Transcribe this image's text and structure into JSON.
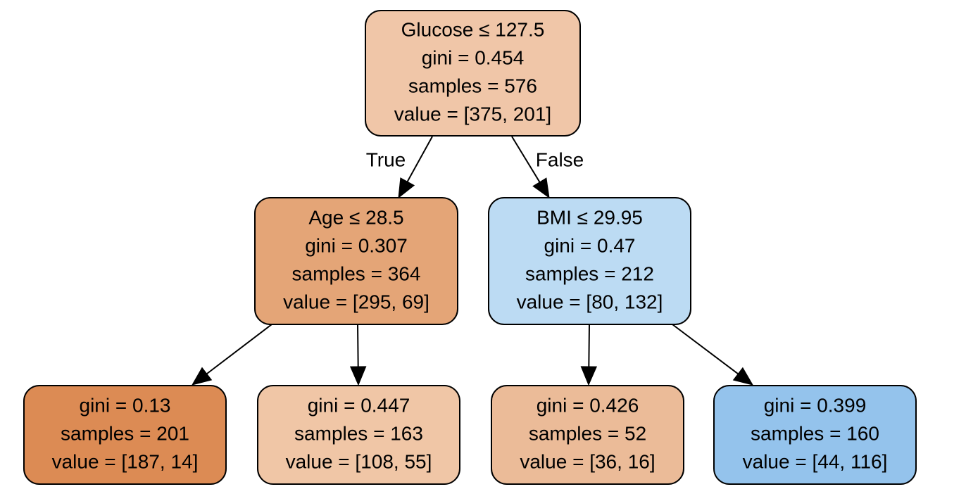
{
  "tree": {
    "nodes": [
      {
        "id": "root",
        "fill": "#f0c6a8",
        "lines": [
          "Glucose ≤ 127.5",
          "gini = 0.454",
          "samples = 576",
          "value = [375, 201]"
        ]
      },
      {
        "id": "left",
        "fill": "#e4a577",
        "lines": [
          "Age ≤ 28.5",
          "gini = 0.307",
          "samples = 364",
          "value = [295, 69]"
        ]
      },
      {
        "id": "right",
        "fill": "#bcdbf3",
        "lines": [
          "BMI ≤ 29.95",
          "gini = 0.47",
          "samples = 212",
          "value = [80, 132]"
        ]
      },
      {
        "id": "left-left",
        "fill": "#dc8b54",
        "lines": [
          "gini = 0.13",
          "samples = 201",
          "value = [187, 14]"
        ]
      },
      {
        "id": "left-right",
        "fill": "#f0c6a6",
        "lines": [
          "gini = 0.447",
          "samples = 163",
          "value = [108, 55]"
        ]
      },
      {
        "id": "right-left",
        "fill": "#ebbb98",
        "lines": [
          "gini = 0.426",
          "samples = 52",
          "value = [36, 16]"
        ]
      },
      {
        "id": "right-right",
        "fill": "#94c3ec",
        "lines": [
          "gini = 0.399",
          "samples = 160",
          "value = [44, 116]"
        ]
      }
    ],
    "edges": [
      {
        "from": "root",
        "to": "left",
        "label": "True"
      },
      {
        "from": "root",
        "to": "right",
        "label": "False"
      },
      {
        "from": "left",
        "to": "left-left",
        "label": ""
      },
      {
        "from": "left",
        "to": "left-right",
        "label": ""
      },
      {
        "from": "right",
        "to": "right-left",
        "label": ""
      },
      {
        "from": "right",
        "to": "right-right",
        "label": ""
      }
    ]
  }
}
